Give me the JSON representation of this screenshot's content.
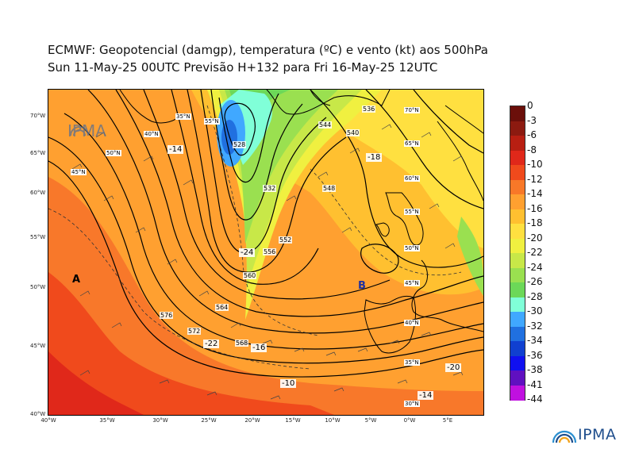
{
  "header": {
    "line1": "ECMWF:  Geopotencial (damgp), temperatura (ºC) e vento (kt) aos 500hPa",
    "line2": "Sun 11-May-25 00UTC Previsão H+132 para Fri 16-May-25 12UTC"
  },
  "logo_text": "IPMA",
  "colorbar": {
    "labels": [
      "0",
      "-3",
      "-6",
      "-8",
      "-10",
      "-12",
      "-14",
      "-16",
      "-18",
      "-20",
      "-22",
      "-24",
      "-26",
      "-28",
      "-30",
      "-32",
      "-34",
      "-36",
      "-38",
      "-41",
      "-44"
    ],
    "colors": [
      "#6b0f0a",
      "#8c1a10",
      "#b81f12",
      "#e0281a",
      "#f04a1c",
      "#f87828",
      "#ffa030",
      "#ffc030",
      "#ffe040",
      "#f0f040",
      "#c8e848",
      "#9ae050",
      "#6cd858",
      "#80ffd8",
      "#40a8ff",
      "#2070e0",
      "#1040d0",
      "#1010f0",
      "#6010c0",
      "#c010e0"
    ]
  },
  "map": {
    "lon_labels": [
      "40°W",
      "35°W",
      "30°W",
      "25°W",
      "20°W",
      "15°W",
      "10°W",
      "5°W",
      "0°W",
      "5°E"
    ],
    "lat_labels": [
      "70°W",
      "65°W",
      "60°W",
      "55°W",
      "50°W",
      "45°W",
      "40°W"
    ],
    "pressure_centers": [
      {
        "label": "A",
        "color": "#222222"
      },
      {
        "label": "B",
        "color": "#2030a0"
      }
    ],
    "contour_labels": [
      "576",
      "572",
      "568",
      "564",
      "560",
      "556",
      "552",
      "548",
      "544",
      "540",
      "536",
      "532",
      "528"
    ],
    "temp_labels": [
      "-14",
      "-18",
      "-24",
      "-16",
      "-10",
      "-14",
      "-20",
      "-22"
    ],
    "inset_labels": [
      "70°N",
      "65°N",
      "60°N",
      "55°N",
      "50°N",
      "45°N",
      "40°N",
      "35°N",
      "30°N",
      "55°N",
      "50°N",
      "45°N",
      "40°N",
      "35°N"
    ]
  }
}
